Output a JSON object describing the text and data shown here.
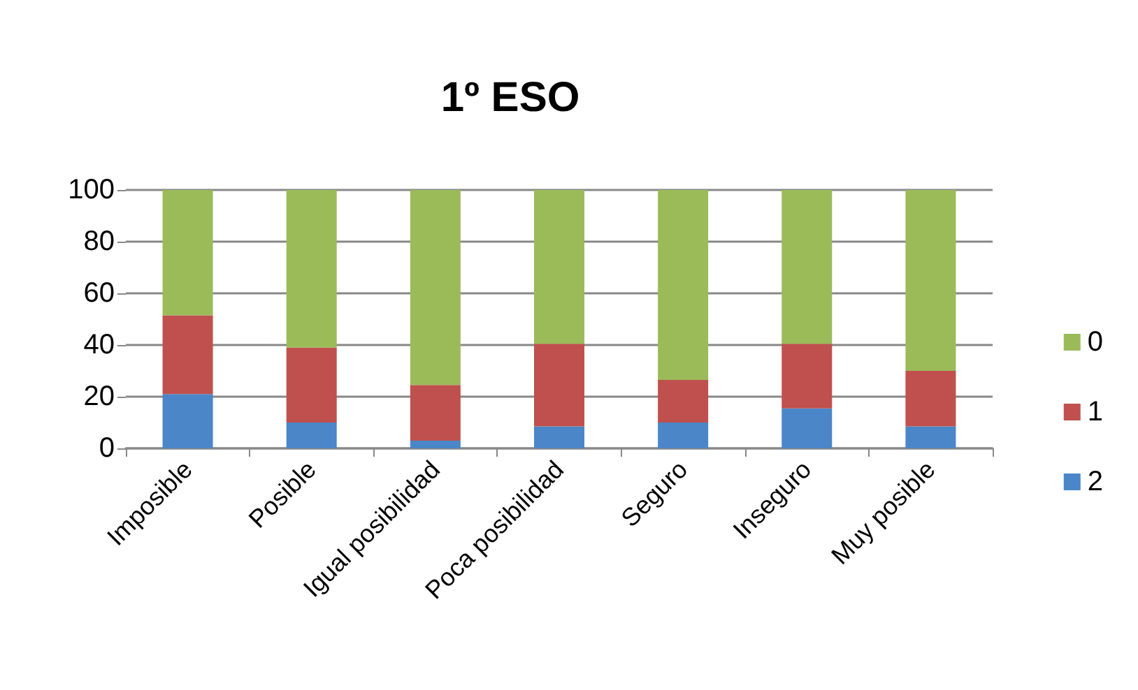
{
  "chart_data": {
    "type": "bar",
    "title": "1º ESO",
    "stacked": true,
    "categories": [
      "Imposible",
      "Posible",
      "Igual posibilidad",
      "Poca posibilidad",
      "Seguro",
      "Inseguro",
      "Muy posible"
    ],
    "series": [
      {
        "name": "2",
        "color": "#4a86c8",
        "values": [
          21,
          10,
          3,
          8.5,
          10,
          15.5,
          8.5
        ]
      },
      {
        "name": "1",
        "color": "#c0504d",
        "values": [
          30.5,
          29,
          21.5,
          32,
          16.5,
          25,
          21.5
        ]
      },
      {
        "name": "0",
        "color": "#9bbb59",
        "values": [
          48.5,
          61,
          75.5,
          59.5,
          73.5,
          59.5,
          70
        ]
      }
    ],
    "ylim": [
      0,
      100
    ],
    "yticks": [
      0,
      20,
      40,
      60,
      80,
      100
    ],
    "grid": "y",
    "legend": "right"
  }
}
